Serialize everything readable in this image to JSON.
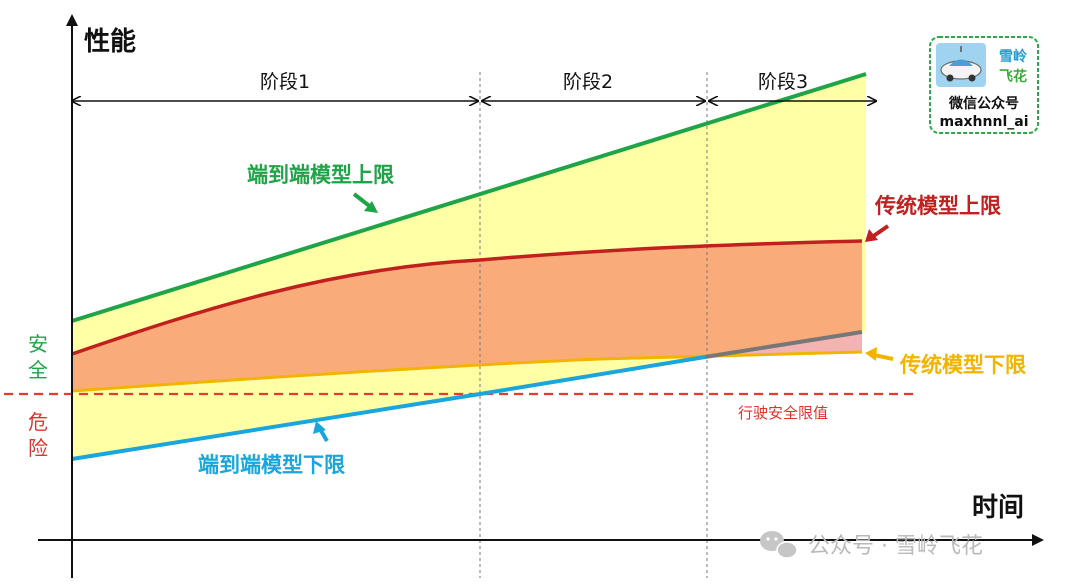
{
  "axes": {
    "y_title": "性能",
    "x_title": "时间"
  },
  "phases": [
    {
      "label": "阶段1"
    },
    {
      "label": "阶段2"
    },
    {
      "label": "阶段3"
    }
  ],
  "curves": {
    "e2e_upper": {
      "label": "端到端模型上限",
      "color": "#1fa447"
    },
    "traditional_upper": {
      "label": "传统模型上限",
      "color": "#c21f1f"
    },
    "traditional_lower": {
      "label": "传统模型下限",
      "color": "#f2b400"
    },
    "e2e_lower": {
      "label": "端到端模型下限",
      "color": "#18a6dc"
    }
  },
  "safety": {
    "safe_chars": [
      "安",
      "全"
    ],
    "danger_chars": [
      "危",
      "险"
    ],
    "safe_color": "#1fa447",
    "danger_color": "#e0332b",
    "limit_label": "行驶安全限值"
  },
  "fills": {
    "e2e_band": "#ffffa6",
    "traditional_band": "#f9ab7a",
    "overlap": "#f4b3b3"
  },
  "logo": {
    "line1": "雪岭",
    "line2": "飞花",
    "line3": "微信公众号",
    "line4": "maxhnnl_ai"
  },
  "watermark": {
    "text": "公众号 · 雪岭飞花"
  }
}
